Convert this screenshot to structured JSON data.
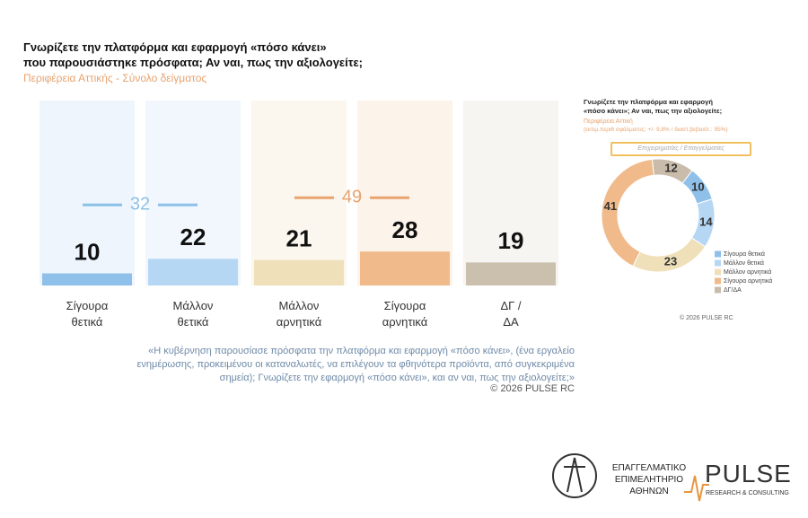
{
  "header": {
    "title": "Γνωρίζετε την πλατφόρμα και εφαρμογή «πόσο κάνει»\nπου παρουσιάστηκε πρόσφατα;  Αν ναι, πως την αξιολογείτε;",
    "subtitle": "Περιφέρεια Αττικής - Σύνολο δείγματος"
  },
  "chart_data": [
    {
      "type": "bar",
      "categories": [
        "Σίγουρα\nθετικά",
        "Μάλλον\nθετικά",
        "Μάλλον\nαρνητικά",
        "Σίγουρα\nαρνητικά",
        "ΔΓ /\nΔΑ"
      ],
      "values": [
        10,
        22,
        21,
        28,
        19
      ],
      "colors": [
        "#8ec0ea",
        "#b6d7f4",
        "#efe0b9",
        "#f1ba8b",
        "#cbbfae"
      ],
      "totals": [
        32,
        49
      ],
      "total_colors": [
        "#8cc0e8",
        "#e8a36f"
      ]
    },
    {
      "type": "donut",
      "title": "Γνωρίζετε την πλατφόρμα και εφαρμογή\n«πόσο κάνει»;  Αν ναι, πως την αξιολογείτε;",
      "subtitle": "Περιφέρεια Αττική",
      "note": "(εκτιμ.περιθ σφάλματος: +/- 9,8% / διαστ.βεβαιότ.: 95%)",
      "badge": "Επιχειρηματίες / Επαγγελματίες",
      "categories": [
        "ΔΓ/ΔΑ",
        "Σίγουρα θετικά",
        "Μάλλον θετικά",
        "Μάλλον αρνητικά",
        "Σίγουρα αρνητικά"
      ],
      "values": [
        12,
        10,
        14,
        23,
        41
      ],
      "colors": [
        "#c9bcaa",
        "#8ec0ea",
        "#b6d7f4",
        "#efe0b9",
        "#f1ba8b"
      ],
      "legend": [
        "Σίγουρα θετικά",
        "Μάλλον θετικά",
        "Μάλλον αρνητικά",
        "Σίγουρα αρνητικά",
        "ΔΓ/ΔΑ"
      ],
      "legend_colors": [
        "#8ec0ea",
        "#b6d7f4",
        "#efe0b9",
        "#f1ba8b",
        "#c9bcaa"
      ],
      "copyright": "© 2026  PULSE RC"
    }
  ],
  "footnote": "«Η κυβέρνηση παρουσίασε πρόσφατα την πλατφόρμα και εφαρμογή «πόσο κάνει», (ένα εργαλείο\nενημέρωσης, προκειμένου οι καταναλωτές, να επιλέγουν τα φθηνότερα προϊόντα, από συγκεκριμένα\nσημεία); Γνωρίζετε την εφαρμογή «πόσο κάνει», και αν ναι, πως την αξιολογείτε;»",
  "copyright": "© 2026  PULSE RC",
  "logos": {
    "chamber": "ΕΠΑΓΓΕΛΜΑΤΙΚΟ\nΕΠΙΜΕΛΗΤΗΡΙΟ\nΑΘΗΝΩΝ",
    "pulse": "PULSE",
    "pulse_sub": "RESEARCH & CONSULTING"
  }
}
